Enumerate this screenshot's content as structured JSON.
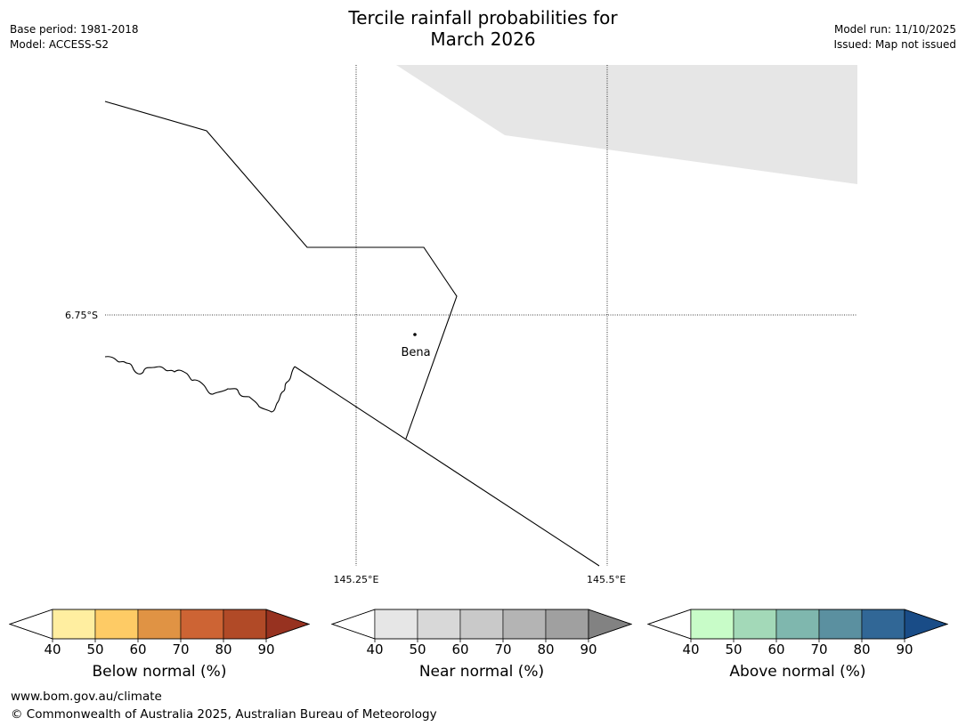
{
  "title_line1": "Tercile rainfall probabilities for",
  "title_line2": "March 2026",
  "meta_left": [
    "Base period: 1981-2018",
    "Model: ACCESS-S2"
  ],
  "meta_right": [
    "Model run: 11/10/2025",
    "Issued: Map not issued"
  ],
  "map": {
    "lat_label": "6.75°S",
    "lon_labels": [
      "145.25°E",
      "145.5°E"
    ],
    "town": "Bena",
    "no_data_color": "#e6e6e6"
  },
  "colorbars": [
    {
      "label": "Below normal (%)",
      "ticks": [
        "40",
        "50",
        "60",
        "70",
        "80",
        "90"
      ],
      "colors": [
        "#ffeea0",
        "#fecb65",
        "#e09344",
        "#cd6434",
        "#b14a27"
      ],
      "extend_color": "#973220"
    },
    {
      "label": "Near normal (%)",
      "ticks": [
        "40",
        "50",
        "60",
        "70",
        "80",
        "90"
      ],
      "colors": [
        "#e6e6e6",
        "#d8d8d8",
        "#c9c9c9",
        "#b4b4b4",
        "#a0a0a0"
      ],
      "extend_color": "#828282"
    },
    {
      "label": "Above normal (%)",
      "ticks": [
        "40",
        "50",
        "60",
        "70",
        "80",
        "90"
      ],
      "colors": [
        "#c8fcc8",
        "#a3d9b8",
        "#7fb7ae",
        "#5b90a0",
        "#316796"
      ],
      "extend_color": "#194c87"
    }
  ],
  "footer": [
    "www.bom.gov.au/climate",
    "© Commonwealth of Australia 2025, Australian Bureau of Meteorology"
  ]
}
